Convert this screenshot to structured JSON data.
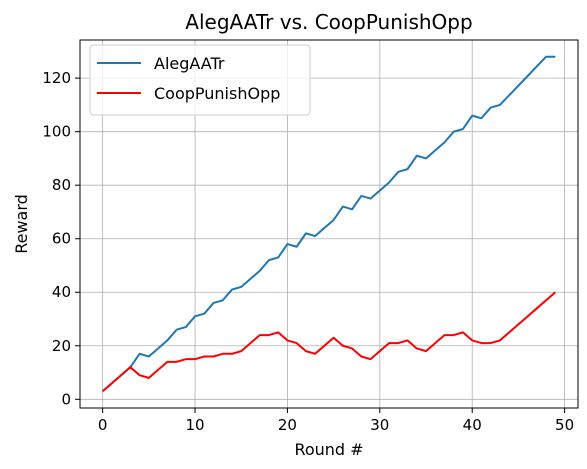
{
  "chart_data": {
    "type": "line",
    "title": "AlegAATr vs. CoopPunishOpp",
    "xlabel": "Round #",
    "ylabel": "Reward",
    "xlim": [
      -2.45,
      51.45
    ],
    "ylim": [
      -3.25,
      134.25
    ],
    "xticks": [
      0,
      10,
      20,
      30,
      40,
      50
    ],
    "yticks": [
      0,
      20,
      40,
      60,
      80,
      100,
      120
    ],
    "grid": true,
    "legend_position": "top-left",
    "x": [
      0,
      1,
      2,
      3,
      4,
      5,
      6,
      7,
      8,
      9,
      10,
      11,
      12,
      13,
      14,
      15,
      16,
      17,
      18,
      19,
      20,
      21,
      22,
      23,
      24,
      25,
      26,
      27,
      28,
      29,
      30,
      31,
      32,
      33,
      34,
      35,
      36,
      37,
      38,
      39,
      40,
      41,
      42,
      43,
      44,
      45,
      46,
      47,
      48,
      49
    ],
    "series": [
      {
        "name": "AlegAATr",
        "color": "#1f77b4",
        "values": [
          3,
          6,
          9,
          12,
          17,
          16,
          19,
          22,
          26,
          27,
          31,
          32,
          36,
          37,
          41,
          42,
          45,
          48,
          52,
          53,
          58,
          57,
          62,
          61,
          64,
          67,
          72,
          71,
          76,
          75,
          78,
          81,
          85,
          86,
          91,
          90,
          93,
          96,
          100,
          101,
          106,
          105,
          109,
          110,
          113.6,
          117.2,
          120.8,
          124.4,
          128,
          128
        ]
      },
      {
        "name": "CoopPunishOpp",
        "color": "#ff0000",
        "values": [
          3,
          6,
          9,
          12,
          9,
          8,
          11,
          14,
          14,
          15,
          15,
          16,
          16,
          17,
          17,
          18,
          21,
          24,
          24,
          25,
          22,
          21,
          18,
          17,
          20,
          23,
          20,
          19,
          16,
          15,
          18,
          21,
          21,
          22,
          19,
          18,
          21,
          24,
          24,
          25,
          22,
          21,
          21,
          22,
          25,
          28,
          31,
          34,
          37,
          40
        ]
      }
    ]
  }
}
